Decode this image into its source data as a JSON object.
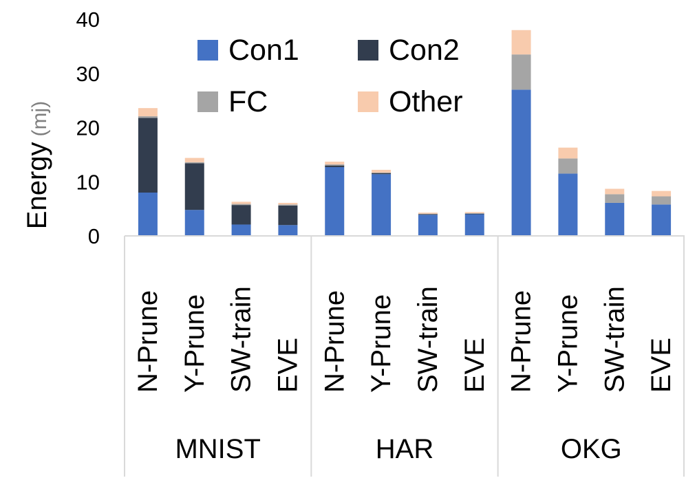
{
  "chart_data": {
    "type": "bar",
    "stacked": true,
    "ylabel": "Energy",
    "ylabel_unit": "(mj)",
    "ylim": [
      0,
      40
    ],
    "yticks": [
      0,
      10,
      20,
      30,
      40
    ],
    "grid": false,
    "legend": {
      "placement": "top-left",
      "columns": 2
    },
    "groups": [
      {
        "name": "MNIST",
        "categories": [
          "N-Prune",
          "Y-Prune",
          "SW-train",
          "EVE"
        ]
      },
      {
        "name": "HAR",
        "categories": [
          "N-Prune",
          "Y-Prune",
          "SW-train",
          "EVE"
        ]
      },
      {
        "name": "OKG",
        "categories": [
          "N-Prune",
          "Y-Prune",
          "SW-train",
          "EVE"
        ]
      }
    ],
    "series": [
      {
        "name": "Con1",
        "color": "#4472C4",
        "values": [
          8.0,
          4.8,
          2.1,
          2.0,
          12.7,
          11.4,
          3.9,
          4.0,
          27.0,
          11.5,
          6.1,
          5.8
        ]
      },
      {
        "name": "Con2",
        "color": "#323D4E",
        "values": [
          13.8,
          8.6,
          3.6,
          3.6,
          0.3,
          0.2,
          0.1,
          0.1,
          0.0,
          0.0,
          0.0,
          0.0
        ]
      },
      {
        "name": "FC",
        "color": "#A5A5A5",
        "values": [
          0.3,
          0.2,
          0.2,
          0.2,
          0.2,
          0.1,
          0.1,
          0.1,
          6.5,
          2.8,
          1.6,
          1.5
        ]
      },
      {
        "name": "Other",
        "color": "#F8CBAD",
        "values": [
          1.5,
          0.8,
          0.4,
          0.3,
          0.5,
          0.5,
          0.2,
          0.2,
          4.5,
          2.0,
          1.0,
          1.0
        ]
      }
    ]
  }
}
